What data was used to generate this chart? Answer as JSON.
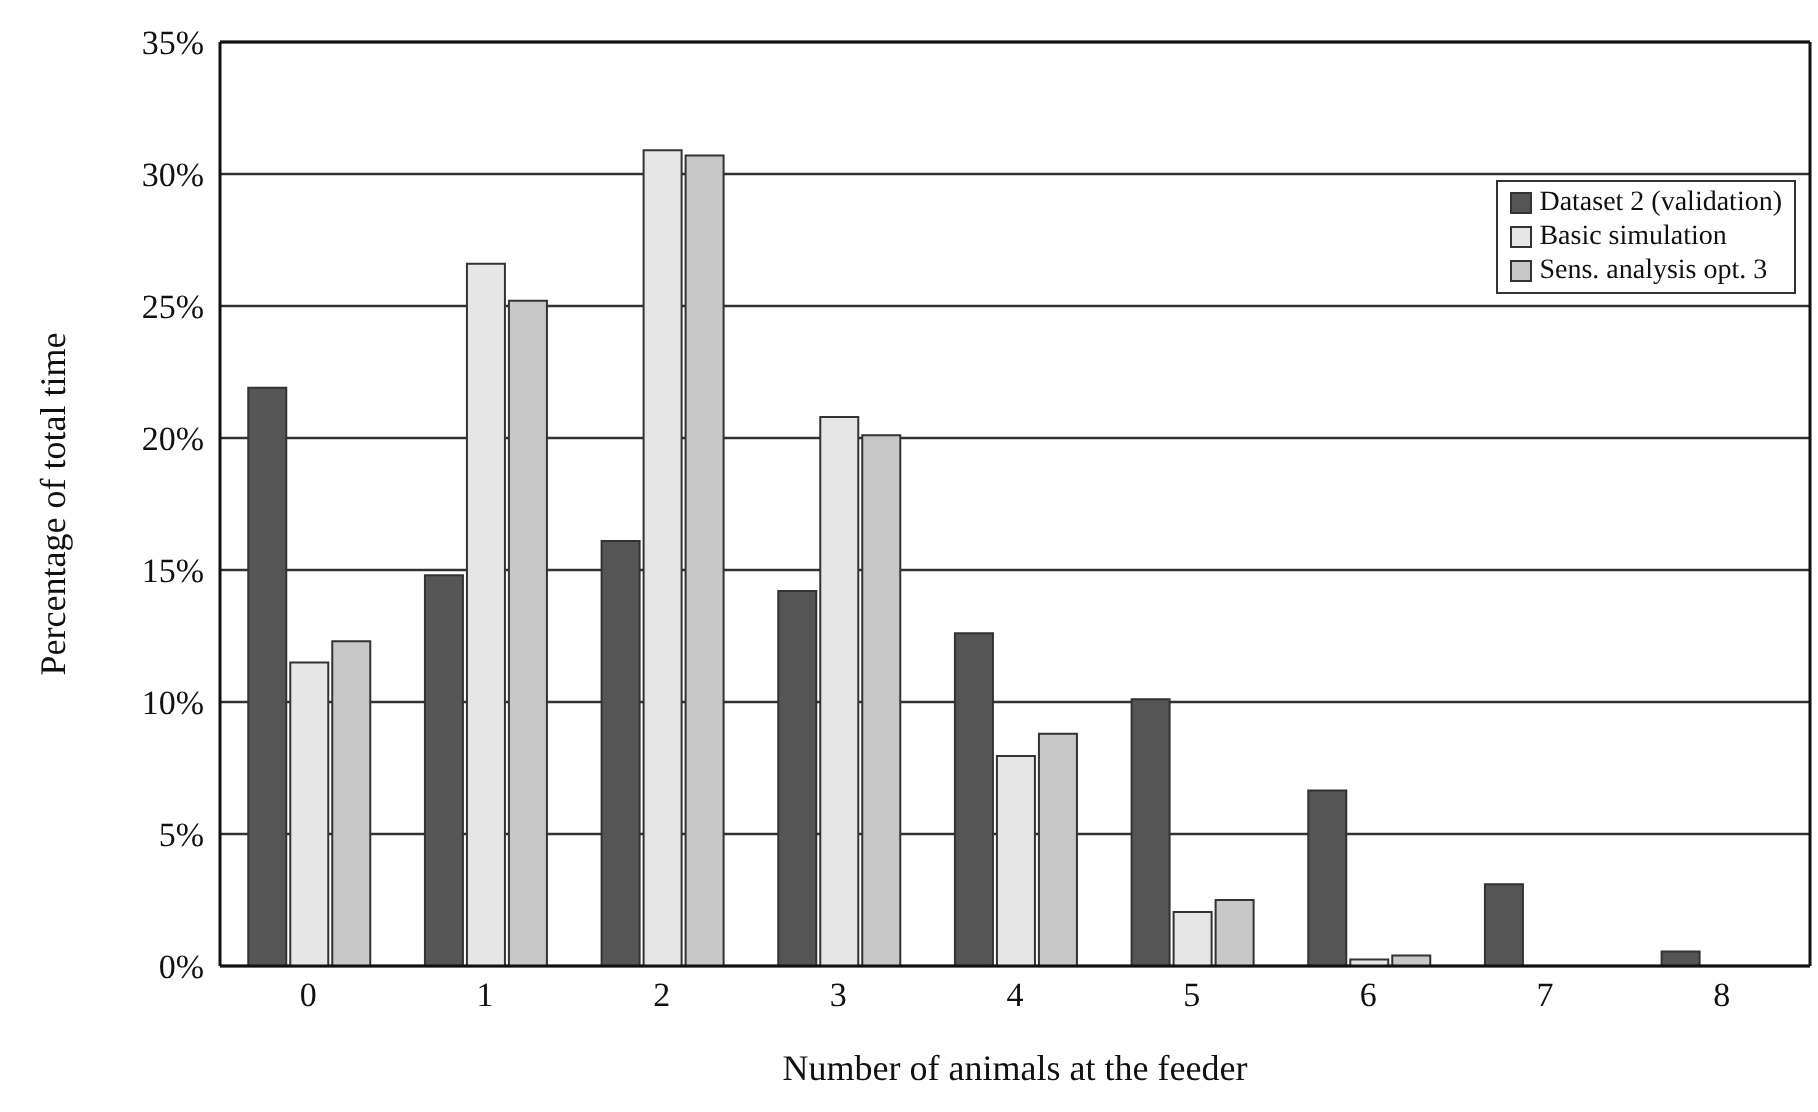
{
  "chart_data": {
    "type": "bar",
    "xlabel": "Number of animals at the feeder",
    "ylabel": "Percentage of total time",
    "categories": [
      "0",
      "1",
      "2",
      "3",
      "4",
      "5",
      "6",
      "7",
      "8"
    ],
    "series": [
      {
        "name": "Dataset 2 (validation)",
        "color": "#555555",
        "values": [
          21.9,
          14.8,
          16.1,
          14.2,
          12.6,
          10.1,
          6.65,
          3.1,
          0.55
        ]
      },
      {
        "name": "Basic simulation",
        "color": "#e6e6e6",
        "values": [
          11.5,
          26.6,
          30.9,
          20.8,
          7.95,
          2.05,
          0.25,
          0,
          0
        ]
      },
      {
        "name": "Sens. analysis opt. 3",
        "color": "#c8c8c8",
        "values": [
          12.3,
          25.2,
          30.7,
          20.1,
          8.8,
          2.5,
          0.4,
          0,
          0
        ]
      }
    ],
    "ylim": [
      0,
      35
    ],
    "yticks": [
      {
        "value": 0,
        "label": "0%"
      },
      {
        "value": 5,
        "label": "5%"
      },
      {
        "value": 10,
        "label": "10%"
      },
      {
        "value": 15,
        "label": "15%"
      },
      {
        "value": 20,
        "label": "20%"
      },
      {
        "value": 25,
        "label": "25%"
      },
      {
        "value": 30,
        "label": "30%"
      },
      {
        "value": 35,
        "label": "35%"
      }
    ],
    "grid": "y",
    "legend": "top right"
  }
}
